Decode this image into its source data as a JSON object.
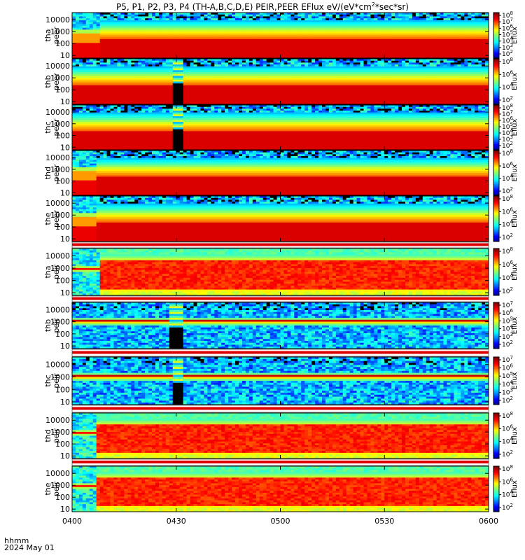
{
  "title_text": "P5, P1, P2, P3, P4 (TH-A,B,C,D,E) PEIR,PEER EFlux eV/(eV*cm",
  "title_sup": "2",
  "title_tail": "*sec*sr)",
  "corner": {
    "line1": "hhmm",
    "line2": "2024 May 01"
  },
  "colors": {
    "background": "#ffffff",
    "axis": "#000000",
    "fill_gap": "#dd0000",
    "dropout": "#000000"
  },
  "chart_data": [
    {
      "type": "heatmap",
      "ylabel": [
        "tha",
        "peer"
      ],
      "yscale": "log",
      "ylim": [
        6,
        40000
      ],
      "yticks": [
        "10",
        "100",
        "1000",
        "10000"
      ],
      "colorbar_label": "Eflux",
      "colorbar_ticks": [
        "10^2",
        "10^3",
        "10^4",
        "10^5",
        "10^6",
        "10^7",
        "10^8"
      ],
      "kind": "electron",
      "onset_min": 8,
      "dropout": null
    },
    {
      "type": "heatmap",
      "ylabel": [
        "thb",
        "peer"
      ],
      "yscale": "log",
      "ylim": [
        6,
        40000
      ],
      "yticks": [
        "10",
        "100",
        "1000",
        "10000"
      ],
      "colorbar_label": "Eflux",
      "colorbar_ticks": [
        "10^2",
        "10^4",
        "10^6",
        "10^8"
      ],
      "kind": "electron_quiet",
      "onset_min": null,
      "dropout": [
        29,
        32
      ]
    },
    {
      "type": "heatmap",
      "ylabel": [
        "thc",
        "peer"
      ],
      "yscale": "log",
      "ylim": [
        6,
        40000
      ],
      "yticks": [
        "10",
        "100",
        "1000",
        "10000"
      ],
      "colorbar_label": "Eflux",
      "colorbar_ticks": [
        "10^2",
        "10^3",
        "10^4",
        "10^5",
        "10^6",
        "10^7",
        "10^8"
      ],
      "kind": "electron_quiet",
      "onset_min": null,
      "dropout": [
        29,
        32
      ]
    },
    {
      "type": "heatmap",
      "ylabel": [
        "thd",
        "peer"
      ],
      "yscale": "log",
      "ylim": [
        6,
        40000
      ],
      "yticks": [
        "10",
        "100",
        "1000",
        "10000"
      ],
      "colorbar_label": "Eflux",
      "colorbar_ticks": [
        "10^2",
        "10^4",
        "10^6",
        "10^8"
      ],
      "kind": "electron",
      "onset_min": 7,
      "dropout": null
    },
    {
      "type": "heatmap",
      "ylabel": [
        "the",
        "peer"
      ],
      "yscale": "log",
      "ylim": [
        6,
        40000
      ],
      "yticks": [
        "10",
        "100",
        "1000",
        "10000"
      ],
      "colorbar_label": "Eflux",
      "colorbar_ticks": [
        "10^2",
        "10^4",
        "10^6",
        "10^8"
      ],
      "kind": "electron",
      "onset_min": 7,
      "dropout": null
    },
    {
      "type": "heatmap",
      "ylabel": [
        "tha",
        "peir"
      ],
      "yscale": "log",
      "ylim": [
        6,
        40000
      ],
      "yticks": [
        "10",
        "100",
        "1000",
        "10000"
      ],
      "colorbar_label": "Eflux",
      "colorbar_ticks": [
        "10^2",
        "10^4",
        "10^6",
        "10^8"
      ],
      "kind": "ion",
      "onset_min": 8,
      "dropout": null
    },
    {
      "type": "heatmap",
      "ylabel": [
        "thb",
        "peir"
      ],
      "yscale": "log",
      "ylim": [
        6,
        40000
      ],
      "yticks": [
        "10",
        "100",
        "1000",
        "10000"
      ],
      "colorbar_label": "Eflux",
      "colorbar_ticks": [
        "10^2",
        "10^3",
        "10^4",
        "10^5",
        "10^6",
        "10^7"
      ],
      "kind": "ion_sw",
      "onset_min": null,
      "dropout": [
        28,
        32
      ]
    },
    {
      "type": "heatmap",
      "ylabel": [
        "thc",
        "peir"
      ],
      "yscale": "log",
      "ylim": [
        6,
        40000
      ],
      "yticks": [
        "10",
        "100",
        "1000",
        "10000"
      ],
      "colorbar_label": "Eflux",
      "colorbar_ticks": [
        "10^2",
        "10^3",
        "10^4",
        "10^5",
        "10^6",
        "10^7"
      ],
      "kind": "ion_sw",
      "onset_min": null,
      "dropout": [
        29,
        32
      ]
    },
    {
      "type": "heatmap",
      "ylabel": [
        "thd",
        "peir"
      ],
      "yscale": "log",
      "ylim": [
        6,
        40000
      ],
      "yticks": [
        "10",
        "100",
        "1000",
        "10000"
      ],
      "colorbar_label": "Eflux",
      "colorbar_ticks": [
        "10^2",
        "10^4",
        "10^6",
        "10^8"
      ],
      "kind": "ion",
      "onset_min": 7,
      "dropout": null
    },
    {
      "type": "heatmap",
      "ylabel": [
        "the",
        "peir"
      ],
      "yscale": "log",
      "ylim": [
        6,
        40000
      ],
      "yticks": [
        "10",
        "100",
        "1000",
        "10000"
      ],
      "colorbar_label": "Eflux",
      "colorbar_ticks": [
        "10^2",
        "10^4",
        "10^6",
        "10^8"
      ],
      "kind": "ion",
      "onset_min": 7,
      "dropout": null
    }
  ],
  "x_axis": {
    "ticks": [
      "0400",
      "0430",
      "0500",
      "0530",
      "0600"
    ],
    "range_min": [
      0,
      120
    ]
  }
}
